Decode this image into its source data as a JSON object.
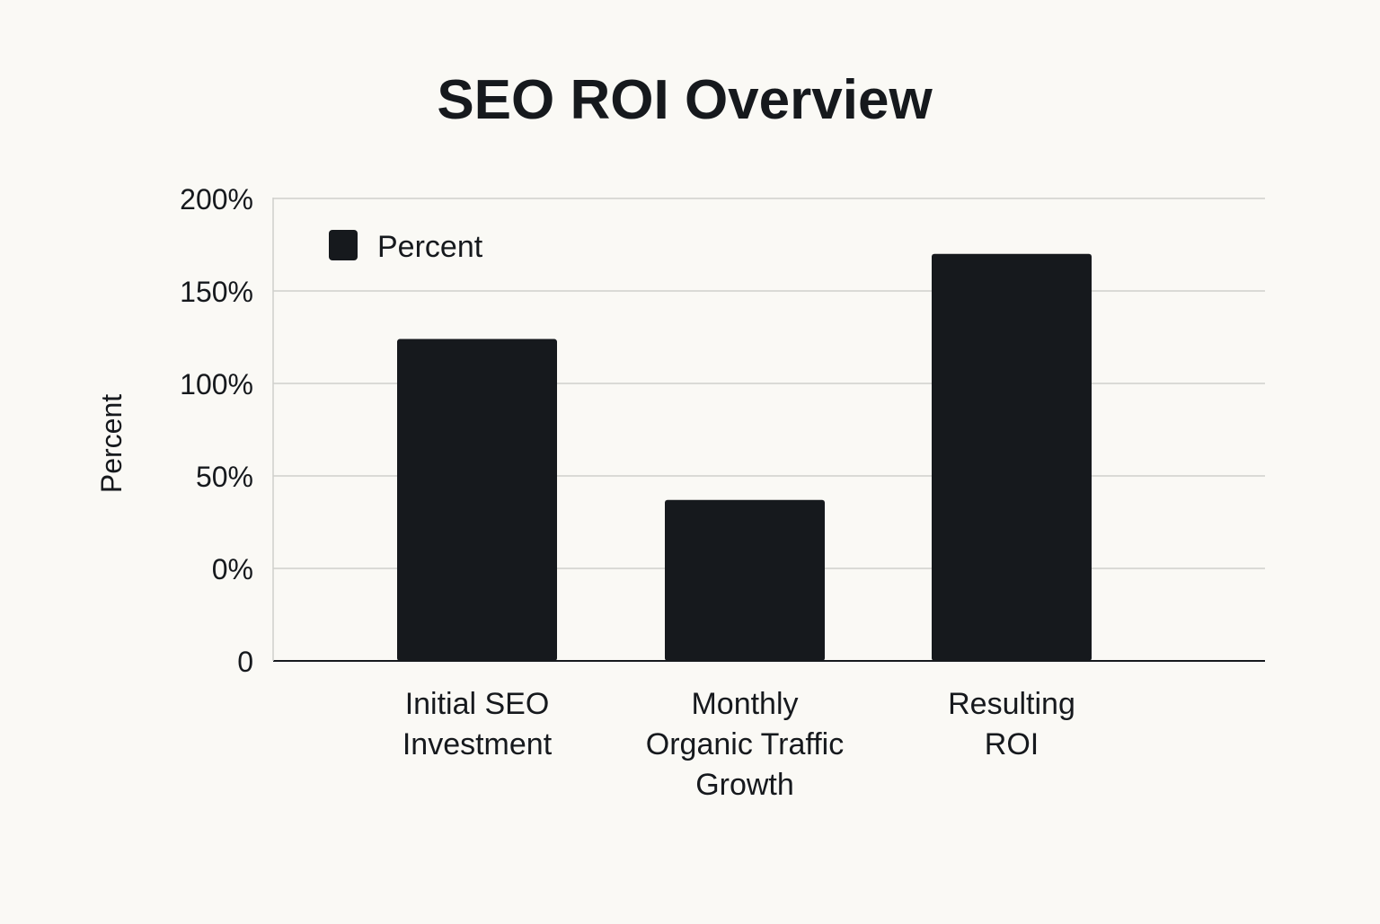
{
  "colors": {
    "background": "#faf9f5",
    "bar": "#16191d",
    "grid": "#cfcfcb",
    "axis": "#16191d",
    "text": "#16191d"
  },
  "chart_data": {
    "type": "bar",
    "title": "SEO ROI Overview",
    "xlabel": "",
    "ylabel": "Percent",
    "categories": [
      "Initial SEO Investment",
      "Monthly Organic Traffic Growth",
      "Resulting ROI"
    ],
    "category_label_lines": [
      [
        "Initial SEO",
        "Investment"
      ],
      [
        "Monthly",
        "Organic Traffic",
        "Growth"
      ],
      [
        "Resulting",
        "ROI"
      ]
    ],
    "series": [
      {
        "name": "Percent",
        "values": [
          124,
          37,
          170
        ]
      }
    ],
    "y_ticks": [
      "0",
      "0%",
      "50%",
      "100%",
      "150%",
      "200%"
    ],
    "ylim": [
      -50,
      200
    ],
    "grid": true,
    "legend": "top-left"
  }
}
